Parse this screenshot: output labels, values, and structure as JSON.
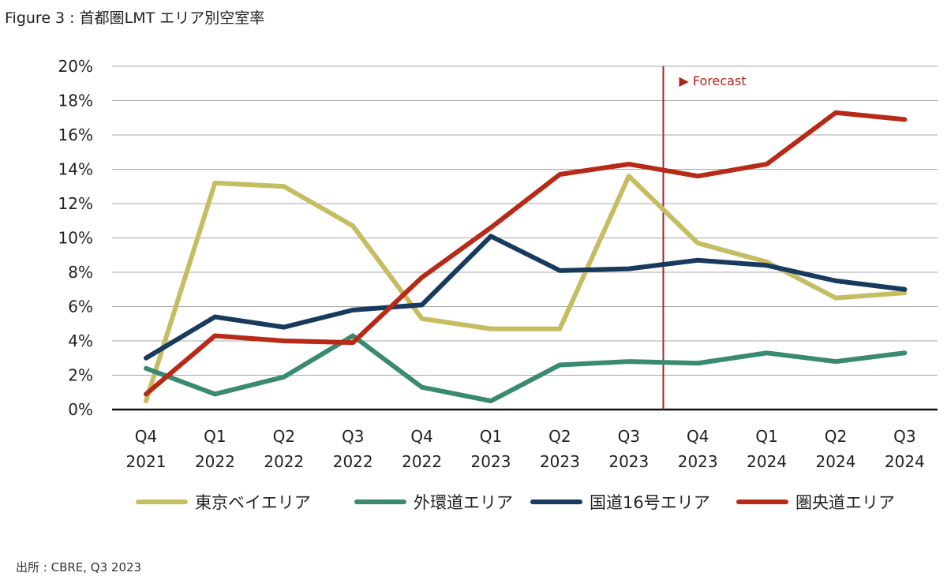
{
  "title": "Figure 3 : 首都圏LMT エリア別空室率",
  "source": "出所 : CBRE, Q3 2023",
  "chart_data": {
    "type": "line",
    "title": "Figure 3 : 首都圏LMT エリア別空室率",
    "xlabel": "",
    "ylabel": "",
    "ylim": [
      0,
      20
    ],
    "y_ticks": [
      "0%",
      "2%",
      "4%",
      "6%",
      "8%",
      "10%",
      "12%",
      "14%",
      "16%",
      "18%",
      "20%"
    ],
    "categories": [
      [
        "Q4",
        "2021"
      ],
      [
        "Q1",
        "2022"
      ],
      [
        "Q2",
        "2022"
      ],
      [
        "Q3",
        "2022"
      ],
      [
        "Q4",
        "2022"
      ],
      [
        "Q1",
        "2023"
      ],
      [
        "Q2",
        "2023"
      ],
      [
        "Q3",
        "2023"
      ],
      [
        "Q4",
        "2023"
      ],
      [
        "Q1",
        "2024"
      ],
      [
        "Q2",
        "2024"
      ],
      [
        "Q3",
        "2024"
      ]
    ],
    "grid": true,
    "legend_position": "bottom",
    "forecast": {
      "label": "▶ Forecast",
      "after_index": 7
    },
    "series": [
      {
        "name": "東京ベイエリア",
        "color": "#c4bd62",
        "values": [
          0.5,
          13.2,
          13.0,
          10.7,
          5.3,
          4.7,
          4.7,
          13.6,
          9.7,
          8.6,
          6.5,
          6.8
        ]
      },
      {
        "name": "外環道エリア",
        "color": "#3a8a72",
        "values": [
          2.4,
          0.9,
          1.9,
          4.3,
          1.3,
          0.5,
          2.6,
          2.8,
          2.7,
          3.3,
          2.8,
          3.3
        ]
      },
      {
        "name": "国道16号エリア",
        "color": "#173a5e",
        "values": [
          3.0,
          5.4,
          4.8,
          5.8,
          6.1,
          10.1,
          8.1,
          8.2,
          8.7,
          8.4,
          7.5,
          7.0
        ]
      },
      {
        "name": "圏央道エリア",
        "color": "#b82a18",
        "values": [
          0.9,
          4.3,
          4.0,
          3.9,
          7.7,
          10.6,
          13.7,
          14.3,
          13.6,
          14.3,
          17.3,
          16.9
        ]
      }
    ]
  }
}
